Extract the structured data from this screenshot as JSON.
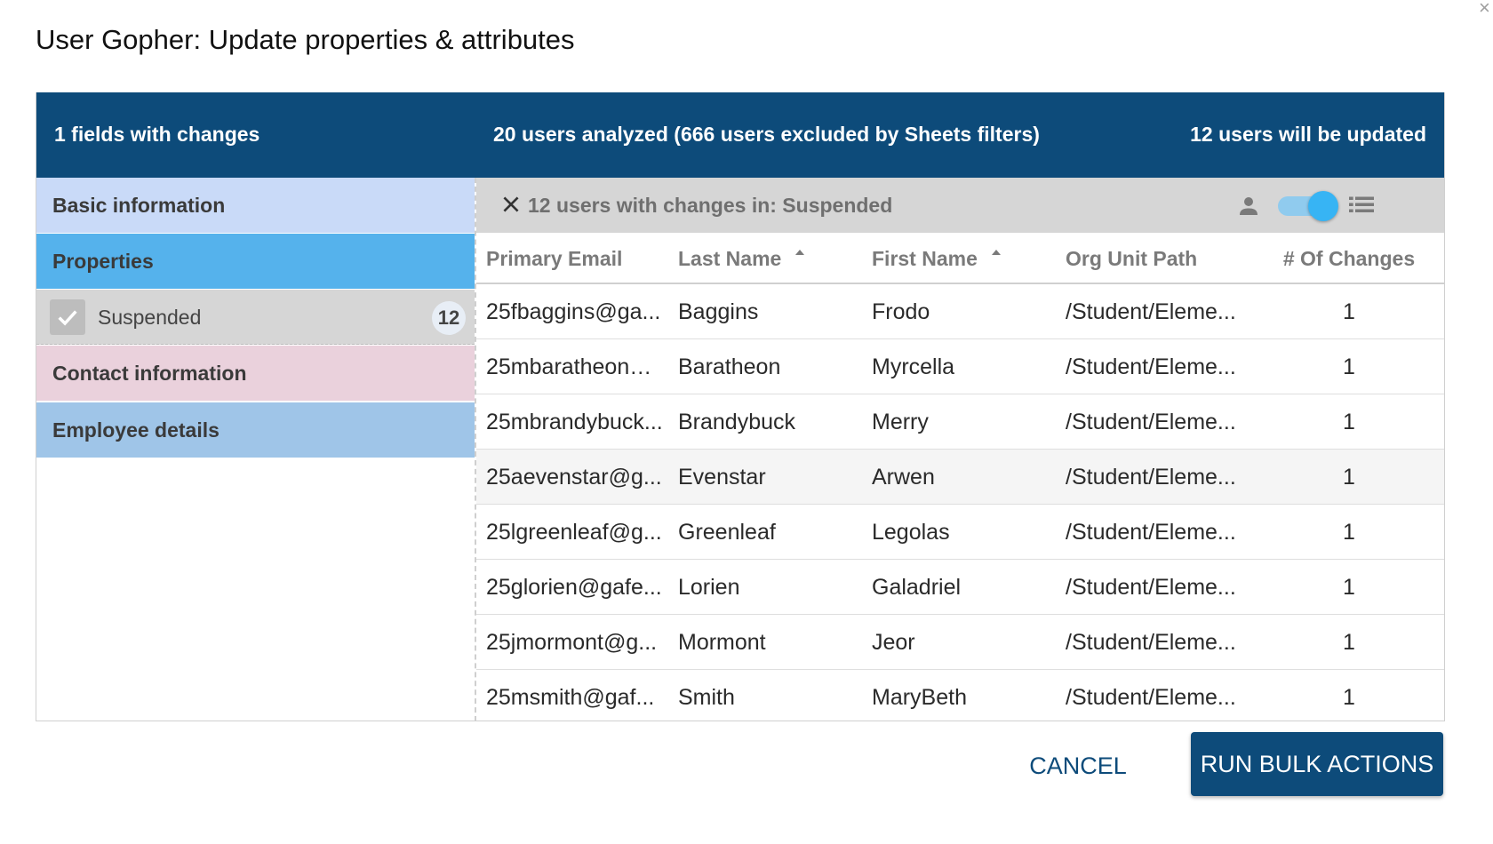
{
  "dialog": {
    "title": "User Gopher: Update properties & attributes",
    "close_glyph": "×"
  },
  "summary": {
    "fields_changed": "1 fields with changes",
    "users_analyzed": "20 users analyzed (666 users excluded by Sheets filters)",
    "users_updated": "12 users will be updated"
  },
  "sidebar": {
    "sections": {
      "basic": "Basic information",
      "properties": "Properties",
      "contact": "Contact information",
      "employee": "Employee details"
    },
    "field": {
      "label": "Suspended",
      "count": "12",
      "checked": true
    }
  },
  "filter": {
    "text": "12 users with changes in: Suspended",
    "view_toggle_on": true
  },
  "table": {
    "headers": {
      "email": "Primary Email",
      "last": "Last Name",
      "first": "First Name",
      "org": "Org Unit Path",
      "changes": "# Of Changes"
    },
    "rows": [
      {
        "email": "25fbaggins@ga...",
        "last": "Baggins",
        "first": "Frodo",
        "org": "/Student/Eleme...",
        "changes": "1"
      },
      {
        "email": "25mbaratheon@...",
        "last": "Baratheon",
        "first": "Myrcella",
        "org": "/Student/Eleme...",
        "changes": "1"
      },
      {
        "email": "25mbrandybuck...",
        "last": "Brandybuck",
        "first": "Merry",
        "org": "/Student/Eleme...",
        "changes": "1"
      },
      {
        "email": "25aevenstar@g...",
        "last": "Evenstar",
        "first": "Arwen",
        "org": "/Student/Eleme...",
        "changes": "1"
      },
      {
        "email": "25lgreenleaf@g...",
        "last": "Greenleaf",
        "first": "Legolas",
        "org": "/Student/Eleme...",
        "changes": "1"
      },
      {
        "email": "25glorien@gafe...",
        "last": "Lorien",
        "first": "Galadriel",
        "org": "/Student/Eleme...",
        "changes": "1"
      },
      {
        "email": "25jmormont@g...",
        "last": "Mormont",
        "first": "Jeor",
        "org": "/Student/Eleme...",
        "changes": "1"
      },
      {
        "email": "25msmith@gaf...",
        "last": "Smith",
        "first": "MaryBeth",
        "org": "/Student/Eleme...",
        "changes": "1"
      }
    ]
  },
  "actions": {
    "cancel": "CANCEL",
    "run": "RUN BULK ACTIONS"
  },
  "colors": {
    "header_bar": "#0d4b7a",
    "basic": "#c9daf8",
    "properties": "#55b2ec",
    "contact": "#ead1dc",
    "employee": "#9fc5e8",
    "toggle": "#37b4f4"
  }
}
